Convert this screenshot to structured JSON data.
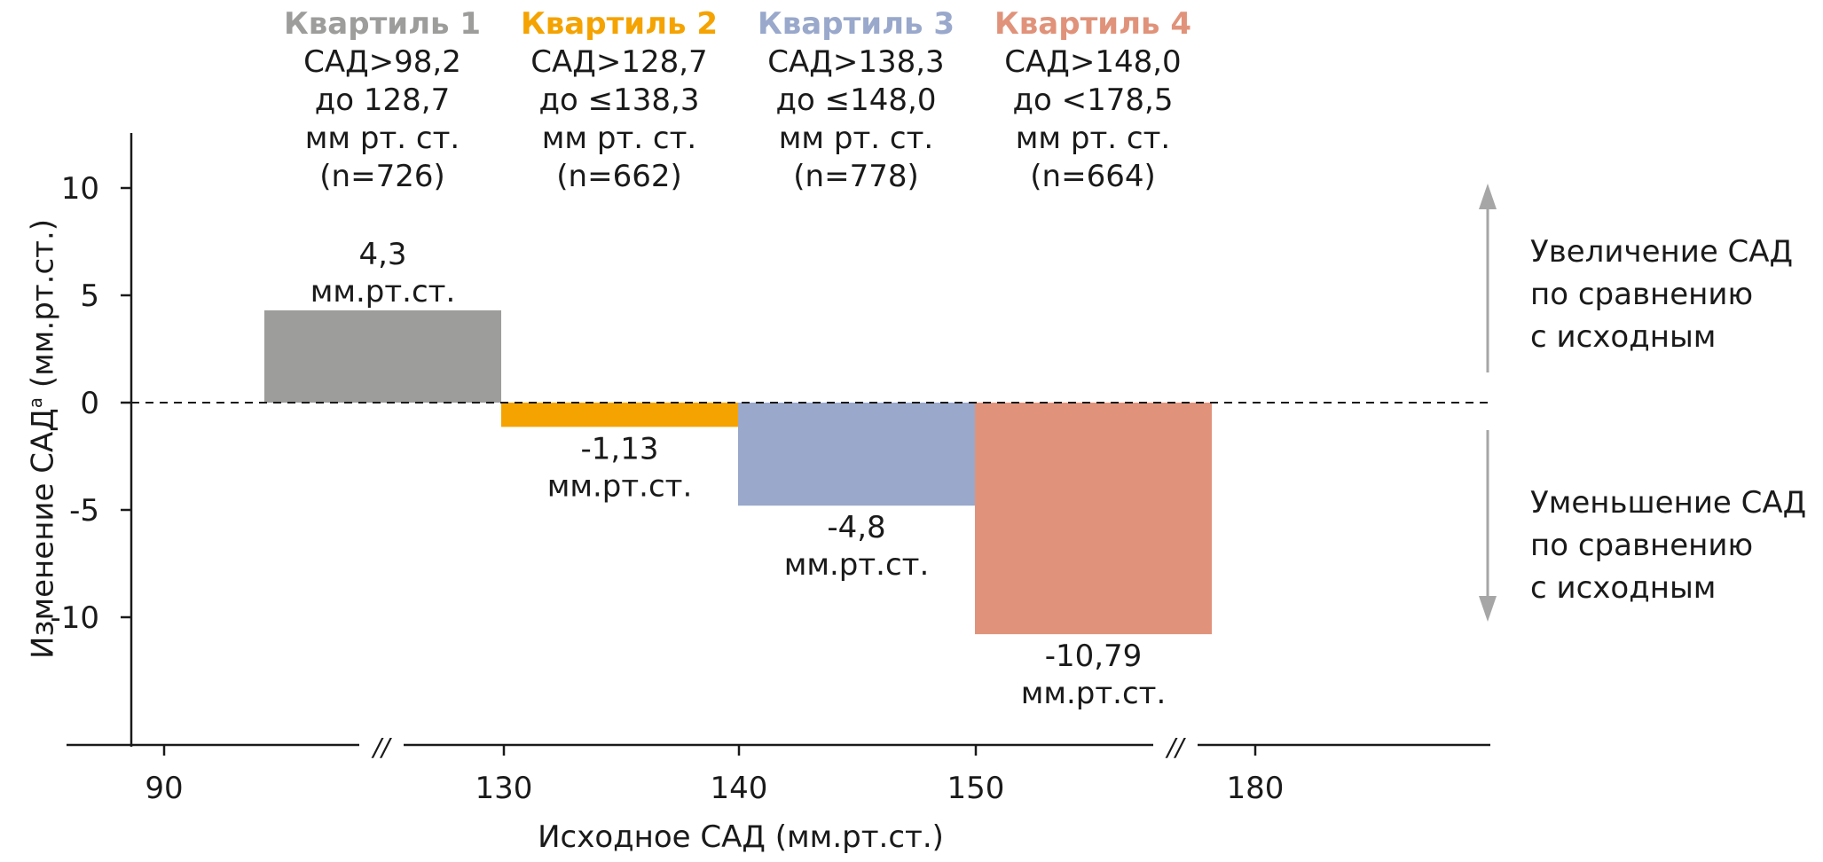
{
  "chart_data": {
    "type": "bar",
    "title": "",
    "xlabel": "Исходное САД (мм.рт.ст.)",
    "ylabel": "Изменение САД",
    "ylabel_superscript": "a",
    "ylim": [
      -16,
      12.5
    ],
    "yticks": [
      10,
      5,
      0,
      -5,
      -10
    ],
    "ytick_labels": [
      "10",
      "5",
      "0",
      "-5",
      "-10"
    ],
    "xticks": [
      {
        "label": "90"
      },
      {
        "label": "130"
      },
      {
        "label": "140"
      },
      {
        "label": "150"
      },
      {
        "label": "180"
      }
    ],
    "axis_break_marks": [
      "//",
      "//"
    ],
    "zero_line": "dashed",
    "grid": false,
    "categories": [
      "Квартиль 1",
      "Квартиль 2",
      "Квартиль 3",
      "Квартиль 4"
    ],
    "values": [
      4.3,
      -1.13,
      -4.8,
      -10.79
    ],
    "bars": [
      {
        "name": "Квартиль 1",
        "color": "#9d9d9c",
        "title_color": "#9d9d9c",
        "range_lines": [
          "САД>98,2",
          "до 128,7",
          "мм рт. ст.",
          "(n=726)"
        ],
        "value": 4.3,
        "value_label": "4,3",
        "unit_label": "мм.рт.ст.",
        "label_position": "above"
      },
      {
        "name": "Квартиль 2",
        "color": "#f4a300",
        "title_color": "#f4a300",
        "range_lines": [
          "САД>128,7",
          "до ≤138,3",
          "мм рт. ст.",
          "(n=662)"
        ],
        "value": -1.13,
        "value_label": "-1,13",
        "unit_label": "мм.рт.ст.",
        "label_position": "below"
      },
      {
        "name": "Квартиль 3",
        "color": "#99a8cb",
        "title_color": "#99a8cb",
        "range_lines": [
          "САД>138,3",
          "до ≤148,0",
          "мм рт. ст.",
          "(n=778)"
        ],
        "value": -4.8,
        "value_label": "-4,8",
        "unit_label": "мм.рт.ст.",
        "label_position": "below"
      },
      {
        "name": "Квартиль 4",
        "color": "#e0937a",
        "title_color": "#e0937a",
        "range_lines": [
          "САД>148,0",
          "до <178,5",
          "мм рт. ст.",
          "(n=664)"
        ],
        "value": -10.79,
        "value_label": "-10,79",
        "unit_label": "мм.рт.ст.",
        "label_position": "below"
      }
    ],
    "annotations": {
      "increase": [
        "Увеличение САД",
        "по сравнению",
        "с исходным"
      ],
      "decrease": [
        "Уменьшение САД",
        "по сравнению",
        "с исходным"
      ]
    },
    "ylabel_unit": "(мм.рт.ст.)",
    "arrow_color": "#a6a6a6"
  }
}
